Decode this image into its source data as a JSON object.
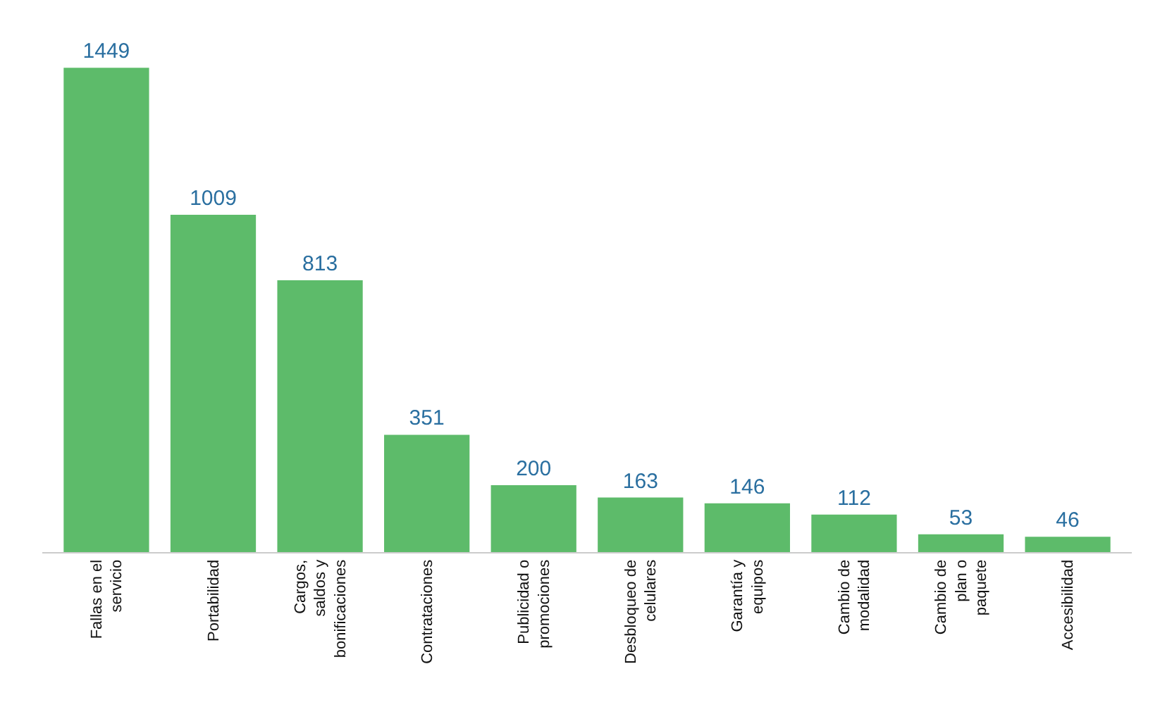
{
  "chart_data": {
    "type": "bar",
    "categories": [
      "Fallas en el servicio",
      "Portabilidad",
      "Cargos, saldos y bonificaciones",
      "Contrataciones",
      "Publicidad o promociones",
      "Desbloqueo de celulares",
      "Garantía y equipos",
      "Cambio de modalidad",
      "Cambio de plan o paquete",
      "Accesibilidad"
    ],
    "values": [
      1449,
      1009,
      813,
      351,
      200,
      163,
      146,
      112,
      53,
      46
    ],
    "color": "#5dbb6a",
    "data_labels": true,
    "legend": false
  }
}
